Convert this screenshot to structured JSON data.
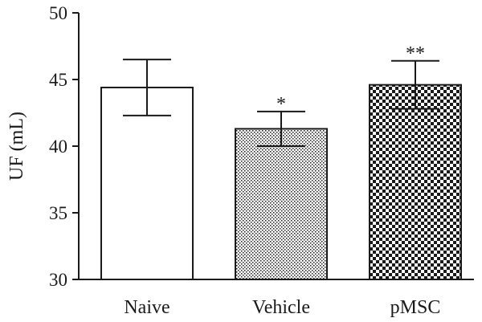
{
  "chart_data": {
    "type": "bar",
    "title": "",
    "xlabel": "",
    "ylabel": "UF (mL)",
    "ylim": [
      30,
      50
    ],
    "yticks": [
      30,
      35,
      40,
      45,
      50
    ],
    "categories": [
      "Naive",
      "Vehicle",
      "pMSC"
    ],
    "values": [
      44.4,
      41.3,
      44.6
    ],
    "error": [
      2.1,
      1.3,
      1.8
    ],
    "significance": [
      "",
      "*",
      "**"
    ],
    "patterns": [
      "solid-white",
      "fine-dots",
      "checkerboard"
    ],
    "colors": {
      "bar_stroke": "#1a1a1a",
      "axis": "#1a1a1a",
      "background": "#ffffff"
    },
    "grid": false,
    "legend": "none"
  }
}
